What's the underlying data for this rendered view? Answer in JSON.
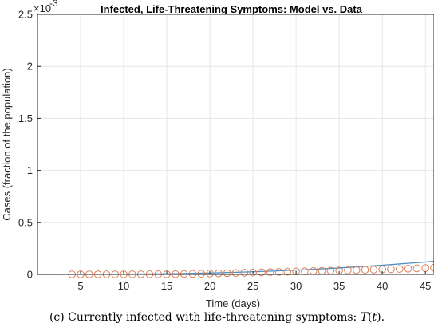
{
  "chart_data": {
    "type": "line",
    "title": "Infected, Life-Threatening Symptoms: Model vs. Data",
    "xlabel": "Time (days)",
    "ylabel": "Cases (fraction of the population)",
    "y_exponent_label": "×10",
    "y_exponent": "-3",
    "xlim": [
      0,
      46
    ],
    "ylim": [
      0,
      0.0025
    ],
    "xticks": [
      5,
      10,
      15,
      20,
      25,
      30,
      35,
      40,
      45
    ],
    "yticks": [
      0,
      0.0005,
      0.001,
      0.0015,
      0.002,
      0.0025
    ],
    "ytick_labels": [
      "0",
      "0.5",
      "1",
      "1.5",
      "2",
      "2.5"
    ],
    "grid": true,
    "colors": {
      "model": "#4a8fc7",
      "data": "#d9805a"
    },
    "series": [
      {
        "style": "line",
        "x": [
          0,
          5,
          10,
          15,
          20,
          25,
          30,
          35,
          40,
          46
        ],
        "values": [
          5e-07,
          1e-06,
          2.5e-06,
          6e-06,
          1.3e-05,
          2.5e-05,
          4e-05,
          6.2e-05,
          8.8e-05,
          0.000125
        ]
      },
      {
        "style": "markers",
        "x": [
          4,
          5,
          6,
          7,
          8,
          9,
          10,
          11,
          12,
          13,
          14,
          15,
          16,
          17,
          18,
          19,
          20,
          21,
          22,
          23,
          24,
          25,
          26,
          27,
          28,
          29,
          30,
          31,
          32,
          33,
          34,
          35,
          36,
          37,
          38,
          39,
          40,
          41,
          42,
          43,
          44,
          45,
          46
        ],
        "values": [
          2e-07,
          3e-07,
          4e-07,
          5e-07,
          6e-07,
          7e-07,
          8e-07,
          9e-07,
          1e-06,
          1.2e-06,
          1.4e-06,
          1.8e-06,
          2.5e-06,
          4e-06,
          5e-06,
          6.5e-06,
          8e-06,
          1e-05,
          1.2e-05,
          1.4e-05,
          1.6e-05,
          1.8e-05,
          2e-05,
          2.2e-05,
          2.4e-05,
          2.6e-05,
          2.8e-05,
          3e-05,
          3.2e-05,
          3.4e-05,
          3.6e-05,
          3.8e-05,
          4e-05,
          4.2e-05,
          4.4e-05,
          4.6e-05,
          4.8e-05,
          5e-05,
          5.2e-05,
          5.5e-05,
          5.8e-05,
          6.1e-05,
          6.4e-05
        ]
      }
    ]
  },
  "caption": "(c) Currently infected with life-threatening symptoms: 𝑇(𝑡)."
}
